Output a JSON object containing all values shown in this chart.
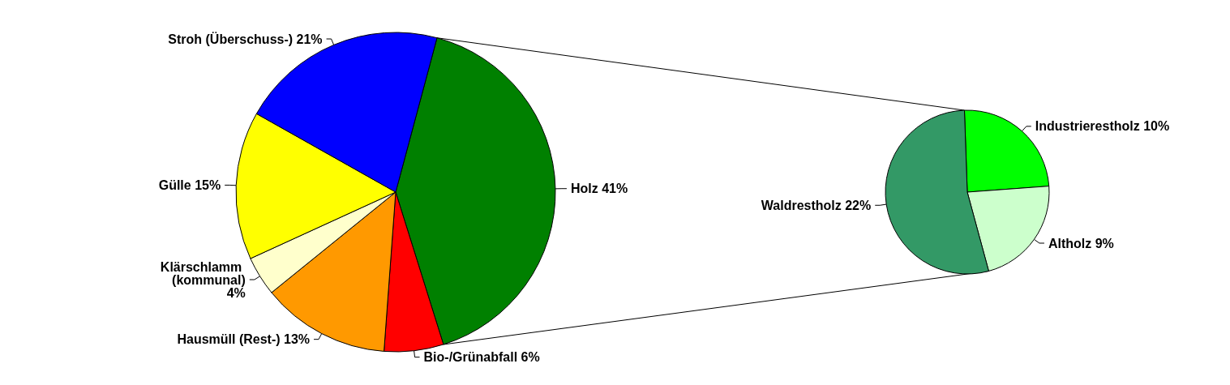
{
  "chart_data": [
    {
      "type": "pie",
      "categories": [
        "Holz",
        "Bio-/Grünabfall",
        "Hausmüll (Rest-)",
        "Klärschlamm (kommunal)",
        "Gülle",
        "Stroh (Überschuss-)"
      ],
      "values": [
        41,
        6,
        13,
        4,
        15,
        21
      ],
      "colors": [
        "#008000",
        "#ff0000",
        "#ff9900",
        "#ffffcc",
        "#ffff00",
        "#0000ff"
      ],
      "value_labels": [
        "41%",
        "6%",
        "13%",
        "4%",
        "15%",
        "21%"
      ],
      "legend": false
    },
    {
      "type": "pie",
      "categories": [
        "Industrierestholz",
        "Altholz",
        "Waldrestholz"
      ],
      "values": [
        10,
        9,
        22
      ],
      "colors": [
        "#00ff00",
        "#ccffcc",
        "#339966"
      ],
      "value_labels": [
        "10%",
        "9%",
        "22%"
      ],
      "legend": false
    }
  ]
}
